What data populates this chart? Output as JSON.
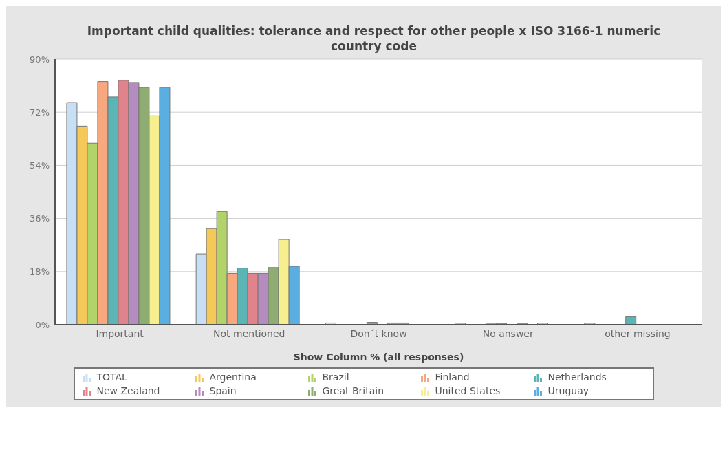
{
  "chart_data": {
    "type": "bar",
    "title": "Important child qualities: tolerance and respect for other people x ISO 3166-1 numeric country code",
    "xlabel": "Show Column % (all responses)",
    "categories": [
      "Important",
      "Not mentioned",
      "Don´t know",
      "No answer",
      "other missing"
    ],
    "series": [
      {
        "name": "TOTAL",
        "color": "#c6dff5",
        "values": [
          75.3,
          24.0,
          0.6,
          0.5,
          0.5
        ]
      },
      {
        "name": "Argentina",
        "color": "#f5c85a",
        "values": [
          67.3,
          32.6,
          null,
          null,
          null
        ]
      },
      {
        "name": "Brazil",
        "color": "#b2d36a",
        "values": [
          61.5,
          38.4,
          null,
          null,
          null
        ]
      },
      {
        "name": "Finland",
        "color": "#f7a87e",
        "values": [
          82.4,
          17.4,
          null,
          0.5,
          null
        ]
      },
      {
        "name": "Netherlands",
        "color": "#5bb5b5",
        "values": [
          77.2,
          19.2,
          0.8,
          0.5,
          2.7
        ]
      },
      {
        "name": "New Zealand",
        "color": "#e0838a",
        "values": [
          82.8,
          17.4,
          null,
          null,
          null
        ]
      },
      {
        "name": "Spain",
        "color": "#b58cc0",
        "values": [
          82.1,
          17.4,
          0.6,
          0.5,
          null
        ]
      },
      {
        "name": "Great Britain",
        "color": "#8fad72",
        "values": [
          80.4,
          19.4,
          0.6,
          null,
          null
        ]
      },
      {
        "name": "United States",
        "color": "#f7ef8e",
        "values": [
          70.8,
          28.9,
          null,
          0.5,
          null
        ]
      },
      {
        "name": "Uruguay",
        "color": "#5aaee0",
        "values": [
          80.4,
          19.8,
          null,
          null,
          null
        ]
      }
    ],
    "ylim": [
      0,
      90
    ],
    "yticks": [
      {
        "value": 0,
        "label": "0%"
      },
      {
        "value": 18,
        "label": "18%"
      },
      {
        "value": 36,
        "label": "36%"
      },
      {
        "value": 54,
        "label": "54%"
      },
      {
        "value": 72,
        "label": "72%"
      },
      {
        "value": 90,
        "label": "90%"
      }
    ],
    "grid": "y",
    "legend": "bottom"
  }
}
